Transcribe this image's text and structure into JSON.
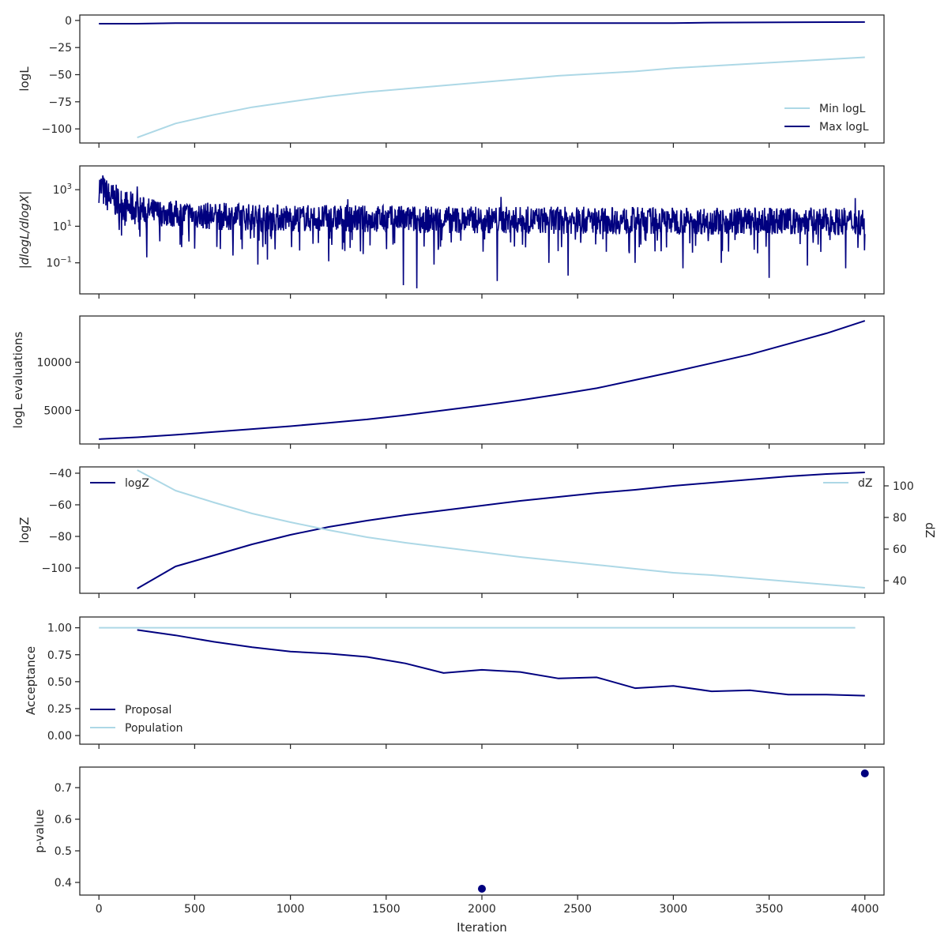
{
  "colors": {
    "dark": "#00007f",
    "light": "#add8e6",
    "axis": "#262626"
  },
  "shared_xaxis": {
    "label": "Iteration",
    "ticks": [
      0,
      500,
      1000,
      1500,
      2000,
      2500,
      3000,
      3500,
      4000
    ],
    "tick_labels": [
      "0",
      "500",
      "1000",
      "1500",
      "2000",
      "2500",
      "3000",
      "3500",
      "4000"
    ],
    "xlim": [
      -100,
      4100
    ]
  },
  "chart_data": [
    {
      "type": "line",
      "ylabel": "logL",
      "ylim": [
        -113,
        5
      ],
      "yticks": [
        0,
        -25,
        -50,
        -75,
        -100
      ],
      "ytick_labels": [
        "0",
        "−25",
        "−50",
        "−75",
        "−100"
      ],
      "legend": "bottom-right",
      "series": [
        {
          "name": "Min logL",
          "color": "light",
          "x": [
            200,
            400,
            600,
            800,
            1000,
            1200,
            1400,
            1600,
            1800,
            2000,
            2200,
            2400,
            2600,
            2800,
            3000,
            3200,
            3400,
            3600,
            3800,
            4000
          ],
          "y": [
            -108,
            -95,
            -87,
            -80,
            -75,
            -70,
            -66,
            -63,
            -60,
            -57,
            -54,
            -51,
            -49,
            -47,
            -44,
            -42,
            -40,
            -38,
            -36,
            -34
          ]
        },
        {
          "name": "Max logL",
          "color": "dark",
          "x": [
            0,
            200,
            400,
            1000,
            2000,
            3000,
            3200,
            4000
          ],
          "y": [
            -3,
            -3,
            -2.5,
            -2.5,
            -2.5,
            -2.5,
            -2,
            -1.5
          ]
        }
      ]
    },
    {
      "type": "line",
      "yscale": "log",
      "ylabel": "|dlogL/dlogX|",
      "ylim": [
        0.002,
        20000
      ],
      "yticks": [
        1000,
        10,
        0.1
      ],
      "ytick_labels": [
        "10^3",
        "10^1",
        "10^-1"
      ],
      "trend": {
        "x": [
          0,
          50,
          150,
          300,
          600,
          1000,
          2000,
          3000,
          4000
        ],
        "y": [
          1500,
          400,
          110,
          55,
          35,
          28,
          22,
          20,
          18
        ]
      },
      "dips": [
        {
          "x": 250,
          "y": 0.2
        },
        {
          "x": 500,
          "y": 0.6
        },
        {
          "x": 700,
          "y": 0.25
        },
        {
          "x": 830,
          "y": 0.08
        },
        {
          "x": 880,
          "y": 0.15
        },
        {
          "x": 1200,
          "y": 0.12
        },
        {
          "x": 1380,
          "y": 0.3
        },
        {
          "x": 1590,
          "y": 0.006
        },
        {
          "x": 1660,
          "y": 0.004
        },
        {
          "x": 1750,
          "y": 0.08
        },
        {
          "x": 2080,
          "y": 0.01
        },
        {
          "x": 2350,
          "y": 0.1
        },
        {
          "x": 2450,
          "y": 0.02
        },
        {
          "x": 2800,
          "y": 0.1
        },
        {
          "x": 3050,
          "y": 0.05
        },
        {
          "x": 3250,
          "y": 0.1
        },
        {
          "x": 3500,
          "y": 0.015
        },
        {
          "x": 3700,
          "y": 0.07
        },
        {
          "x": 3900,
          "y": 0.05
        }
      ],
      "spikes": [
        {
          "x": 5,
          "y": 12000
        },
        {
          "x": 20,
          "y": 6000
        },
        {
          "x": 200,
          "y": 1500
        },
        {
          "x": 500,
          "y": 700
        },
        {
          "x": 1300,
          "y": 300
        },
        {
          "x": 2100,
          "y": 400
        },
        {
          "x": 3950,
          "y": 350
        }
      ],
      "series": [
        {
          "color": "dark"
        }
      ]
    },
    {
      "type": "line",
      "ylabel": "logL evaluations",
      "ylim": [
        1500,
        14800
      ],
      "yticks": [
        5000,
        10000
      ],
      "ytick_labels": [
        "5000",
        "10000"
      ],
      "series": [
        {
          "color": "dark",
          "x": [
            0,
            200,
            400,
            600,
            800,
            1000,
            1200,
            1400,
            1600,
            1800,
            2000,
            2200,
            2400,
            2600,
            2800,
            3000,
            3200,
            3400,
            3600,
            3800,
            4000
          ],
          "y": [
            2000,
            2200,
            2450,
            2750,
            3050,
            3350,
            3700,
            4050,
            4500,
            5000,
            5500,
            6050,
            6650,
            7300,
            8150,
            9000,
            9900,
            10800,
            11900,
            13000,
            14300
          ]
        }
      ]
    },
    {
      "type": "line",
      "ylabel": "logZ",
      "ylim": [
        -116,
        -36
      ],
      "yticks": [
        -40,
        -60,
        -80,
        -100
      ],
      "ytick_labels": [
        "−40",
        "−60",
        "−80",
        "−100"
      ],
      "y2label": "dZ",
      "y2lim": [
        32,
        112
      ],
      "y2ticks": [
        40,
        60,
        80,
        100
      ],
      "y2tick_labels": [
        "40",
        "60",
        "80",
        "100"
      ],
      "legend": "top-left",
      "legend2": "top-right",
      "series": [
        {
          "name": "logZ",
          "color": "dark",
          "axis": "left",
          "x": [
            200,
            400,
            600,
            800,
            1000,
            1200,
            1400,
            1600,
            1800,
            2000,
            2200,
            2400,
            2600,
            2800,
            3000,
            3200,
            3400,
            3600,
            3800,
            4000
          ],
          "y": [
            -113,
            -99,
            -92,
            -85,
            -79,
            -74,
            -70,
            -66.5,
            -63.5,
            -60.5,
            -57.5,
            -55,
            -52.5,
            -50.5,
            -48,
            -46,
            -44,
            -42,
            -40.5,
            -39.5
          ]
        },
        {
          "name": "dZ",
          "color": "light",
          "axis": "right",
          "x": [
            200,
            400,
            600,
            800,
            1000,
            1200,
            1400,
            1600,
            1800,
            2000,
            2200,
            2400,
            2600,
            2800,
            3000,
            3200,
            3400,
            3600,
            3800,
            4000
          ],
          "y": [
            110,
            97,
            89.5,
            82.5,
            77,
            72,
            67.5,
            64,
            61,
            58,
            55,
            52.5,
            50,
            47.5,
            45,
            43.5,
            41.5,
            39.5,
            37.5,
            35.5
          ]
        }
      ]
    },
    {
      "type": "line",
      "ylabel": "Acceptance",
      "ylim": [
        -0.08,
        1.1
      ],
      "yticks": [
        1.0,
        0.75,
        0.5,
        0.25,
        0.0
      ],
      "ytick_labels": [
        "1.00",
        "0.75",
        "0.50",
        "0.25",
        "0.00"
      ],
      "legend": "bottom-left",
      "series": [
        {
          "name": "Proposal",
          "color": "dark",
          "x": [
            200,
            400,
            600,
            800,
            1000,
            1200,
            1400,
            1600,
            1800,
            2000,
            2200,
            2400,
            2600,
            2800,
            3000,
            3200,
            3400,
            3600,
            3800,
            4000
          ],
          "y": [
            0.98,
            0.93,
            0.87,
            0.82,
            0.78,
            0.76,
            0.73,
            0.67,
            0.58,
            0.61,
            0.59,
            0.53,
            0.54,
            0.44,
            0.46,
            0.41,
            0.42,
            0.38,
            0.38,
            0.37
          ]
        },
        {
          "name": "Population",
          "color": "light",
          "x": [
            0,
            3950
          ],
          "y": [
            1.0,
            1.0
          ]
        }
      ]
    },
    {
      "type": "scatter",
      "ylabel": "p-value",
      "ylim": [
        0.36,
        0.765
      ],
      "yticks": [
        0.7,
        0.6,
        0.5,
        0.4
      ],
      "ytick_labels": [
        "0.7",
        "0.6",
        "0.5",
        "0.4"
      ],
      "series": [
        {
          "color": "dark",
          "x": [
            2000,
            4000
          ],
          "y": [
            0.38,
            0.745
          ]
        }
      ]
    }
  ]
}
